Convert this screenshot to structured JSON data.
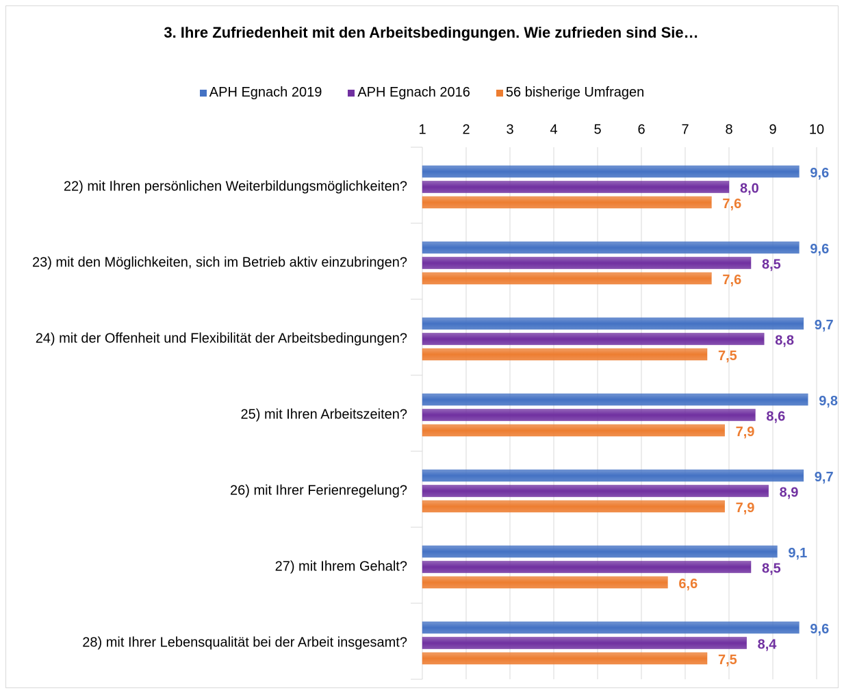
{
  "chart_data": {
    "type": "bar",
    "orientation": "horizontal",
    "title": "3. Ihre Zufriedenheit mit den Arbeitsbedingungen. Wie zufrieden sind Sie…",
    "categories": [
      "22) mit Ihren persönlichen Weiterbildungsmöglichkeiten?",
      "23) mit den Möglichkeiten, sich im Betrieb aktiv einzubringen?",
      "24) mit der Offenheit und Flexibilität der Arbeitsbedingungen?",
      "25) mit Ihren Arbeitszeiten?",
      "26) mit Ihrer Ferienregelung?",
      "27) mit Ihrem Gehalt?",
      "28) mit Ihrer Lebensqualität bei der Arbeit insgesamt?"
    ],
    "series": [
      {
        "name": "APH Egnach 2019",
        "color": "#4472c4",
        "values": [
          9.6,
          9.6,
          9.7,
          9.8,
          9.7,
          9.1,
          9.6
        ],
        "value_labels": [
          "9,6",
          "9,6",
          "9,7",
          "9,8",
          "9,7",
          "9,1",
          "9,6"
        ]
      },
      {
        "name": "APH Egnach 2016",
        "color": "#7030a0",
        "values": [
          8.0,
          8.5,
          8.8,
          8.6,
          8.9,
          8.5,
          8.4
        ],
        "value_labels": [
          "8,0",
          "8,5",
          "8,8",
          "8,6",
          "8,9",
          "8,5",
          "8,4"
        ]
      },
      {
        "name": "56 bisherige Umfragen",
        "color": "#ed7d31",
        "values": [
          7.6,
          7.6,
          7.5,
          7.9,
          7.9,
          6.6,
          7.5
        ],
        "value_labels": [
          "7,6",
          "7,6",
          "7,5",
          "7,9",
          "7,9",
          "6,6",
          "7,5"
        ]
      }
    ],
    "xlim": [
      1,
      10
    ],
    "xticks": [
      1,
      2,
      3,
      4,
      5,
      6,
      7,
      8,
      9,
      10
    ],
    "grid": true,
    "legend": "top"
  }
}
